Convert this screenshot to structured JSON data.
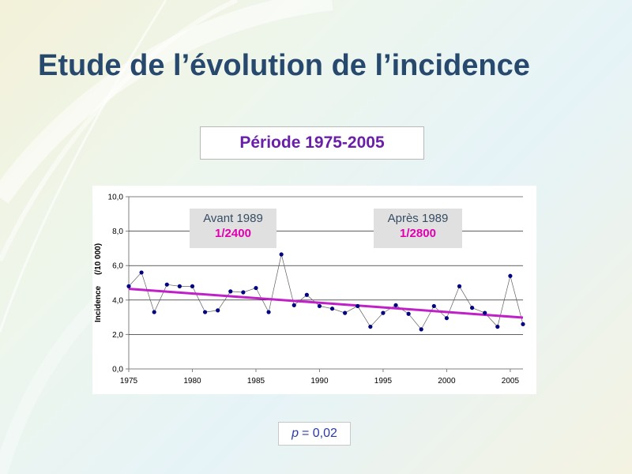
{
  "slide": {
    "title": "Etude de l’évolution de l’incidence",
    "period": "Période 1975-2005",
    "annotations": {
      "before": {
        "label": "Avant 1989",
        "value": "1/2400"
      },
      "after": {
        "label": "Après 1989",
        "value": "1/2800"
      }
    },
    "pvalue": {
      "symbol": "p",
      "text": "= 0,02"
    }
  },
  "colors": {
    "title": "#27496d",
    "period": "#6a1fa8",
    "trend": "#c020c8",
    "points": "#000080",
    "annotation_value": "#e000b0"
  },
  "chart_data": {
    "type": "line",
    "title": "",
    "xlabel": "",
    "ylabel": "Incidence     (/10 000)",
    "xlim": [
      1975,
      2006
    ],
    "ylim": [
      0,
      10
    ],
    "x_ticks": [
      1975,
      1980,
      1985,
      1990,
      1995,
      2000,
      2005
    ],
    "y_ticks": [
      "0,0",
      "2,0",
      "4,0",
      "6,0",
      "8,0",
      "10,0"
    ],
    "grid": true,
    "legend": "none",
    "series": [
      {
        "x": [
          1975,
          1976,
          1977,
          1978,
          1979,
          1980,
          1981,
          1982,
          1983,
          1984,
          1985,
          1986,
          1987,
          1988,
          1989,
          1990,
          1991,
          1992,
          1993,
          1994,
          1995,
          1996,
          1997,
          1998,
          1999,
          2000,
          2001,
          2002,
          2003,
          2004,
          2005,
          2006
        ],
        "values": [
          4.8,
          5.6,
          3.3,
          4.9,
          4.8,
          4.8,
          3.3,
          3.4,
          4.5,
          4.45,
          4.7,
          3.3,
          6.65,
          3.7,
          4.3,
          3.65,
          3.5,
          3.25,
          3.65,
          2.45,
          3.25,
          3.7,
          3.2,
          2.3,
          3.65,
          2.95,
          4.8,
          3.55,
          3.25,
          2.45,
          5.4,
          2.6
        ]
      }
    ],
    "trendline": {
      "x": [
        1975,
        2006
      ],
      "values": [
        4.65,
        2.98
      ]
    }
  }
}
